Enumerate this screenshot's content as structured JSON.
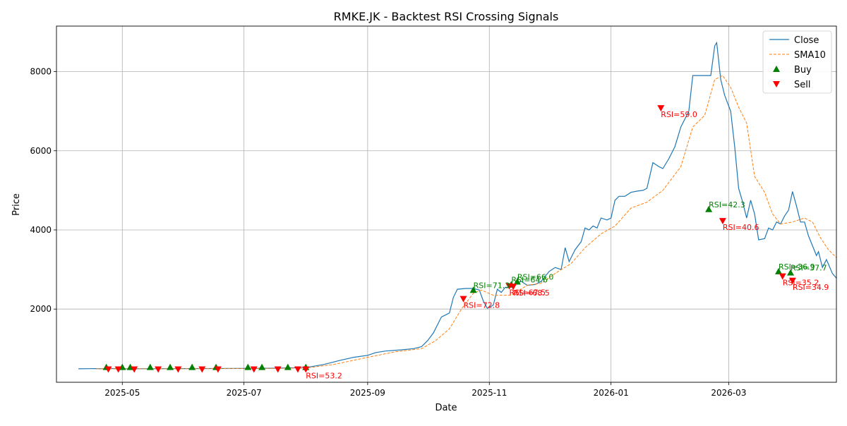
{
  "chart_data": {
    "type": "line",
    "title": "RMKE.JK - Backtest RSI Crossing Signals",
    "xlabel": "Date",
    "ylabel": "Price",
    "x_ticks": [
      "2025-05",
      "2025-07",
      "2025-09",
      "2025-11",
      "2026-01",
      "2026-03"
    ],
    "y_ticks": [
      2000,
      4000,
      6000,
      8000
    ],
    "xlim": [
      "2025-03-29",
      "2026-04-24"
    ],
    "ylim": [
      150,
      9150
    ],
    "grid": true,
    "legend_position": "top-right",
    "colors": {
      "close": "#1f77b4",
      "sma": "#ff7f0e",
      "buy": "#008000",
      "sell": "#ff0000",
      "grid": "#b0b0b0"
    },
    "series": [
      {
        "name": "Close",
        "style": "solid",
        "points": [
          [
            "2025-04-09",
            490
          ],
          [
            "2025-04-17",
            495
          ],
          [
            "2025-04-21",
            490
          ],
          [
            "2025-04-24",
            500
          ],
          [
            "2025-05-01",
            490
          ],
          [
            "2025-05-15",
            492
          ],
          [
            "2025-06-01",
            495
          ],
          [
            "2025-06-15",
            497
          ],
          [
            "2025-07-01",
            500
          ],
          [
            "2025-07-15",
            505
          ],
          [
            "2025-08-01",
            520
          ],
          [
            "2025-08-10",
            600
          ],
          [
            "2025-08-18",
            700
          ],
          [
            "2025-08-25",
            780
          ],
          [
            "2025-09-01",
            830
          ],
          [
            "2025-09-05",
            900
          ],
          [
            "2025-09-10",
            940
          ],
          [
            "2025-09-18",
            970
          ],
          [
            "2025-09-24",
            1000
          ],
          [
            "2025-09-28",
            1050
          ],
          [
            "2025-10-01",
            1200
          ],
          [
            "2025-10-04",
            1400
          ],
          [
            "2025-10-08",
            1800
          ],
          [
            "2025-10-12",
            1900
          ],
          [
            "2025-10-14",
            2300
          ],
          [
            "2025-10-16",
            2500
          ],
          [
            "2025-10-20",
            2520
          ],
          [
            "2025-10-24",
            2520
          ],
          [
            "2025-10-27",
            2480
          ],
          [
            "2025-10-29",
            2200
          ],
          [
            "2025-10-31",
            2020
          ],
          [
            "2025-11-03",
            2100
          ],
          [
            "2025-11-05",
            2500
          ],
          [
            "2025-11-07",
            2420
          ],
          [
            "2025-11-09",
            2550
          ],
          [
            "2025-11-12",
            2550
          ],
          [
            "2025-11-14",
            2650
          ],
          [
            "2025-11-17",
            2700
          ],
          [
            "2025-11-20",
            2600
          ],
          [
            "2025-11-24",
            2620
          ],
          [
            "2025-11-27",
            2700
          ],
          [
            "2025-12-01",
            2950
          ],
          [
            "2025-12-04",
            3050
          ],
          [
            "2025-12-07",
            3000
          ],
          [
            "2025-12-09",
            3550
          ],
          [
            "2025-12-11",
            3200
          ],
          [
            "2025-12-14",
            3500
          ],
          [
            "2025-12-17",
            3700
          ],
          [
            "2025-12-19",
            4050
          ],
          [
            "2025-12-21",
            4000
          ],
          [
            "2025-12-23",
            4100
          ],
          [
            "2025-12-25",
            4050
          ],
          [
            "2025-12-27",
            4300
          ],
          [
            "2025-12-30",
            4250
          ],
          [
            "2026-01-01",
            4300
          ],
          [
            "2026-01-03",
            4750
          ],
          [
            "2026-01-05",
            4850
          ],
          [
            "2026-01-08",
            4850
          ],
          [
            "2026-01-11",
            4950
          ],
          [
            "2026-01-14",
            4980
          ],
          [
            "2026-01-17",
            5000
          ],
          [
            "2026-01-19",
            5050
          ],
          [
            "2026-01-22",
            5700
          ],
          [
            "2026-01-25",
            5600
          ],
          [
            "2026-01-27",
            5550
          ],
          [
            "2026-01-30",
            5800
          ],
          [
            "2026-02-02",
            6100
          ],
          [
            "2026-02-05",
            6600
          ],
          [
            "2026-02-09",
            7000
          ],
          [
            "2026-02-11",
            7900
          ],
          [
            "2026-02-14",
            7900
          ],
          [
            "2026-02-17",
            7900
          ],
          [
            "2026-02-20",
            7900
          ],
          [
            "2026-02-22",
            8650
          ],
          [
            "2026-02-23",
            8730
          ],
          [
            "2026-02-25",
            7800
          ],
          [
            "2026-02-27",
            7400
          ],
          [
            "2026-03-02",
            7000
          ],
          [
            "2026-03-04",
            6100
          ],
          [
            "2026-03-06",
            5050
          ],
          [
            "2026-03-08",
            4700
          ],
          [
            "2026-03-10",
            4300
          ],
          [
            "2026-03-12",
            4750
          ],
          [
            "2026-03-14",
            4400
          ],
          [
            "2026-03-16",
            3750
          ],
          [
            "2026-03-19",
            3780
          ],
          [
            "2026-03-21",
            4050
          ],
          [
            "2026-03-23",
            4000
          ],
          [
            "2026-03-25",
            4200
          ],
          [
            "2026-03-27",
            4150
          ],
          [
            "2026-03-29",
            4350
          ],
          [
            "2026-03-31",
            4500
          ],
          [
            "2026-04-02",
            4970
          ],
          [
            "2026-04-04",
            4600
          ],
          [
            "2026-04-06",
            4200
          ],
          [
            "2026-04-08",
            4200
          ],
          [
            "2026-04-10",
            3850
          ],
          [
            "2026-04-12",
            3600
          ],
          [
            "2026-04-14",
            3350
          ],
          [
            "2026-04-15",
            3450
          ],
          [
            "2026-04-17",
            3050
          ],
          [
            "2026-04-19",
            3250
          ],
          [
            "2026-04-22",
            2900
          ],
          [
            "2026-04-24",
            2780
          ]
        ]
      },
      {
        "name": "SMA10",
        "style": "dashed",
        "points": [
          [
            "2025-04-18",
            490
          ],
          [
            "2025-05-15",
            492
          ],
          [
            "2025-06-15",
            495
          ],
          [
            "2025-07-15",
            500
          ],
          [
            "2025-08-01",
            510
          ],
          [
            "2025-08-15",
            600
          ],
          [
            "2025-09-01",
            780
          ],
          [
            "2025-09-15",
            920
          ],
          [
            "2025-09-28",
            1000
          ],
          [
            "2025-10-05",
            1200
          ],
          [
            "2025-10-12",
            1500
          ],
          [
            "2025-10-18",
            2000
          ],
          [
            "2025-10-24",
            2400
          ],
          [
            "2025-10-28",
            2480
          ],
          [
            "2025-11-03",
            2350
          ],
          [
            "2025-11-12",
            2350
          ],
          [
            "2025-11-20",
            2600
          ],
          [
            "2025-11-27",
            2650
          ],
          [
            "2025-12-04",
            2900
          ],
          [
            "2025-12-12",
            3150
          ],
          [
            "2025-12-19",
            3550
          ],
          [
            "2025-12-27",
            3900
          ],
          [
            "2026-01-03",
            4100
          ],
          [
            "2026-01-11",
            4550
          ],
          [
            "2026-01-19",
            4700
          ],
          [
            "2026-01-27",
            5000
          ],
          [
            "2026-02-05",
            5600
          ],
          [
            "2026-02-11",
            6600
          ],
          [
            "2026-02-17",
            6900
          ],
          [
            "2026-02-22",
            7800
          ],
          [
            "2026-02-26",
            7900
          ],
          [
            "2026-03-02",
            7600
          ],
          [
            "2026-03-06",
            7100
          ],
          [
            "2026-03-10",
            6700
          ],
          [
            "2026-03-14",
            5350
          ],
          [
            "2026-03-19",
            4950
          ],
          [
            "2026-03-23",
            4400
          ],
          [
            "2026-03-27",
            4150
          ],
          [
            "2026-04-02",
            4200
          ],
          [
            "2026-04-08",
            4300
          ],
          [
            "2026-04-12",
            4200
          ],
          [
            "2026-04-16",
            3800
          ],
          [
            "2026-04-20",
            3500
          ],
          [
            "2026-04-24",
            3300
          ]
        ]
      }
    ],
    "buy_points": [
      {
        "x": "2025-04-23",
        "y": 530
      },
      {
        "x": "2025-05-01",
        "y": 530
      },
      {
        "x": "2025-05-05",
        "y": 530
      },
      {
        "x": "2025-05-15",
        "y": 530
      },
      {
        "x": "2025-05-25",
        "y": 530
      },
      {
        "x": "2025-06-05",
        "y": 530
      },
      {
        "x": "2025-06-17",
        "y": 530
      },
      {
        "x": "2025-07-03",
        "y": 530
      },
      {
        "x": "2025-07-10",
        "y": 530
      },
      {
        "x": "2025-07-23",
        "y": 530
      },
      {
        "x": "2025-08-01",
        "y": 530
      },
      {
        "x": "2025-10-24",
        "y": 2480,
        "label": "RSI=71.3"
      },
      {
        "x": "2025-11-12",
        "y": 2620,
        "label": "RSI=64.6"
      },
      {
        "x": "2025-11-15",
        "y": 2690,
        "label": "RSI=66.0"
      },
      {
        "x": "2026-02-19",
        "y": 4520,
        "label": "RSI=42.3"
      },
      {
        "x": "2026-03-26",
        "y": 2950,
        "label": "RSI=36.9"
      },
      {
        "x": "2026-04-01",
        "y": 2920,
        "label": "RSI=37.7"
      }
    ],
    "sell_points": [
      {
        "x": "2025-04-24",
        "y": 480
      },
      {
        "x": "2025-04-29",
        "y": 480
      },
      {
        "x": "2025-05-07",
        "y": 480
      },
      {
        "x": "2025-05-19",
        "y": 480
      },
      {
        "x": "2025-05-29",
        "y": 480
      },
      {
        "x": "2025-06-10",
        "y": 480
      },
      {
        "x": "2025-06-18",
        "y": 480
      },
      {
        "x": "2025-07-06",
        "y": 480
      },
      {
        "x": "2025-07-18",
        "y": 480
      },
      {
        "x": "2025-07-28",
        "y": 480
      },
      {
        "x": "2025-08-01",
        "y": 480,
        "label": "RSI=53.2"
      },
      {
        "x": "2025-10-19",
        "y": 2260,
        "label": "RSI=72.8"
      },
      {
        "x": "2025-11-11",
        "y": 2580,
        "label": "RSI=67.5"
      },
      {
        "x": "2025-11-13",
        "y": 2570,
        "label": "RSI=68.5"
      },
      {
        "x": "2026-01-26",
        "y": 7080,
        "label": "RSI=59.0"
      },
      {
        "x": "2026-02-26",
        "y": 4230,
        "label": "RSI=40.6"
      },
      {
        "x": "2026-03-28",
        "y": 2830,
        "label": "RSI=35.2"
      },
      {
        "x": "2026-04-02",
        "y": 2720,
        "label": "RSI=34.9"
      }
    ],
    "legend": [
      "Close",
      "SMA10",
      "Buy",
      "Sell"
    ]
  }
}
